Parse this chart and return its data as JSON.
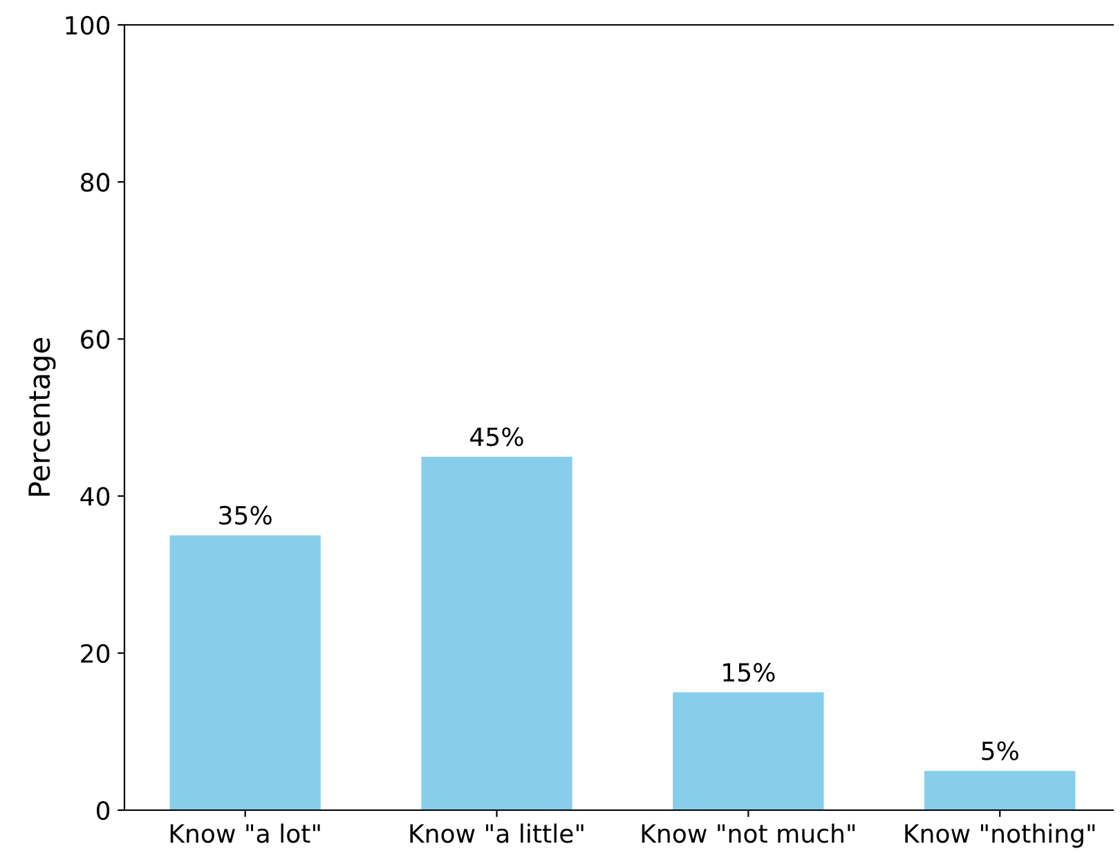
{
  "chart_data": {
    "type": "bar",
    "ylabel": "Percentage",
    "categories": [
      "Know \"a lot\"",
      "Know \"a little\"",
      "Know \"not much\"",
      "Know \"nothing\""
    ],
    "values": [
      35,
      45,
      15,
      5
    ],
    "color": "#87ceeb",
    "value_labels": [
      "35%",
      "45%",
      "15%",
      "5%"
    ],
    "ylim": [
      0,
      100
    ],
    "yticks": [
      0,
      20,
      40,
      60,
      80,
      100
    ],
    "grid": false
  }
}
